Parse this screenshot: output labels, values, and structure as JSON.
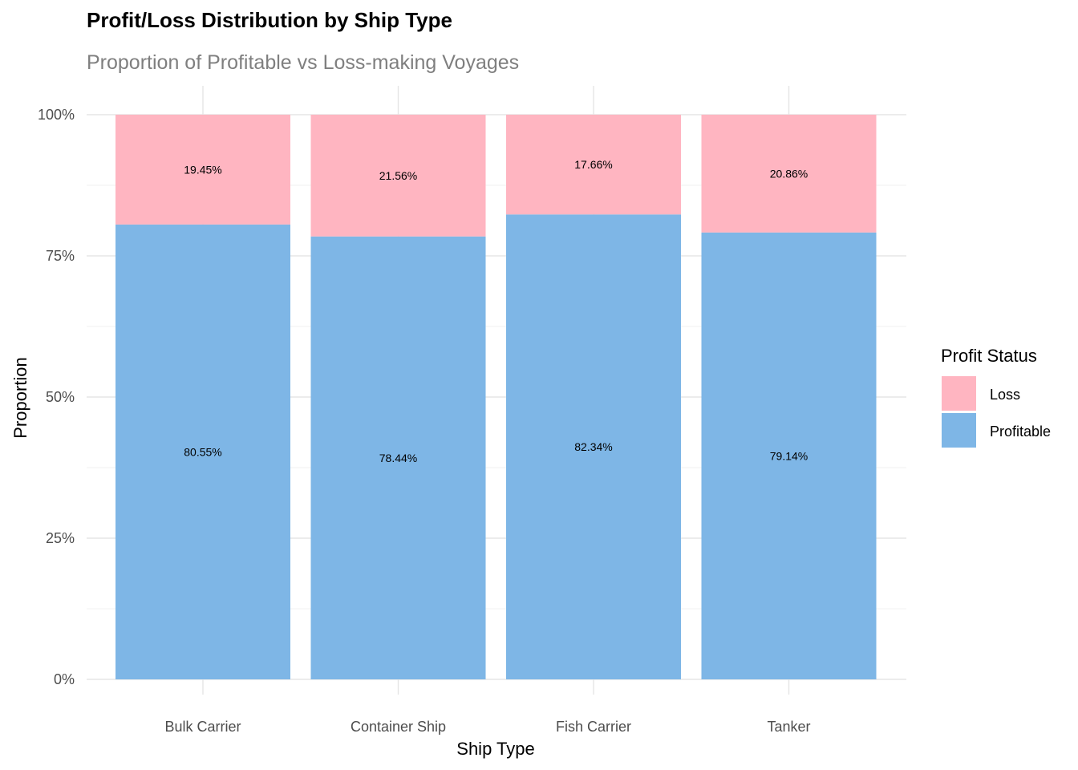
{
  "chart_data": {
    "type": "bar",
    "stacked": "proportion",
    "title": "Profit/Loss Distribution by Ship Type",
    "subtitle": "Proportion of Profitable vs Loss-making Voyages",
    "xlabel": "Ship Type",
    "ylabel": "Proportion",
    "ylim": [
      0,
      1
    ],
    "yticks": [
      {
        "value": 0,
        "label": "0%"
      },
      {
        "value": 0.25,
        "label": "25%"
      },
      {
        "value": 0.5,
        "label": "50%"
      },
      {
        "value": 0.75,
        "label": "75%"
      },
      {
        "value": 1,
        "label": "100%"
      }
    ],
    "categories": [
      "Bulk Carrier",
      "Container Ship",
      "Fish Carrier",
      "Tanker"
    ],
    "series": [
      {
        "name": "Profitable",
        "color": "#7EB6E6",
        "values": [
          0.8055,
          0.7844,
          0.8234,
          0.7914
        ],
        "labels": [
          "80.55%",
          "78.44%",
          "82.34%",
          "79.14%"
        ]
      },
      {
        "name": "Loss",
        "color": "#FFB5C1",
        "values": [
          0.1945,
          0.2156,
          0.1766,
          0.2086
        ],
        "labels": [
          "19.45%",
          "21.56%",
          "17.66%",
          "20.86%"
        ]
      }
    ],
    "grid": true,
    "legend": {
      "title": "Profit Status",
      "position": "right",
      "entries": [
        {
          "label": "Loss",
          "color": "#FFB5C1"
        },
        {
          "label": "Profitable",
          "color": "#7EB6E6"
        }
      ]
    }
  }
}
